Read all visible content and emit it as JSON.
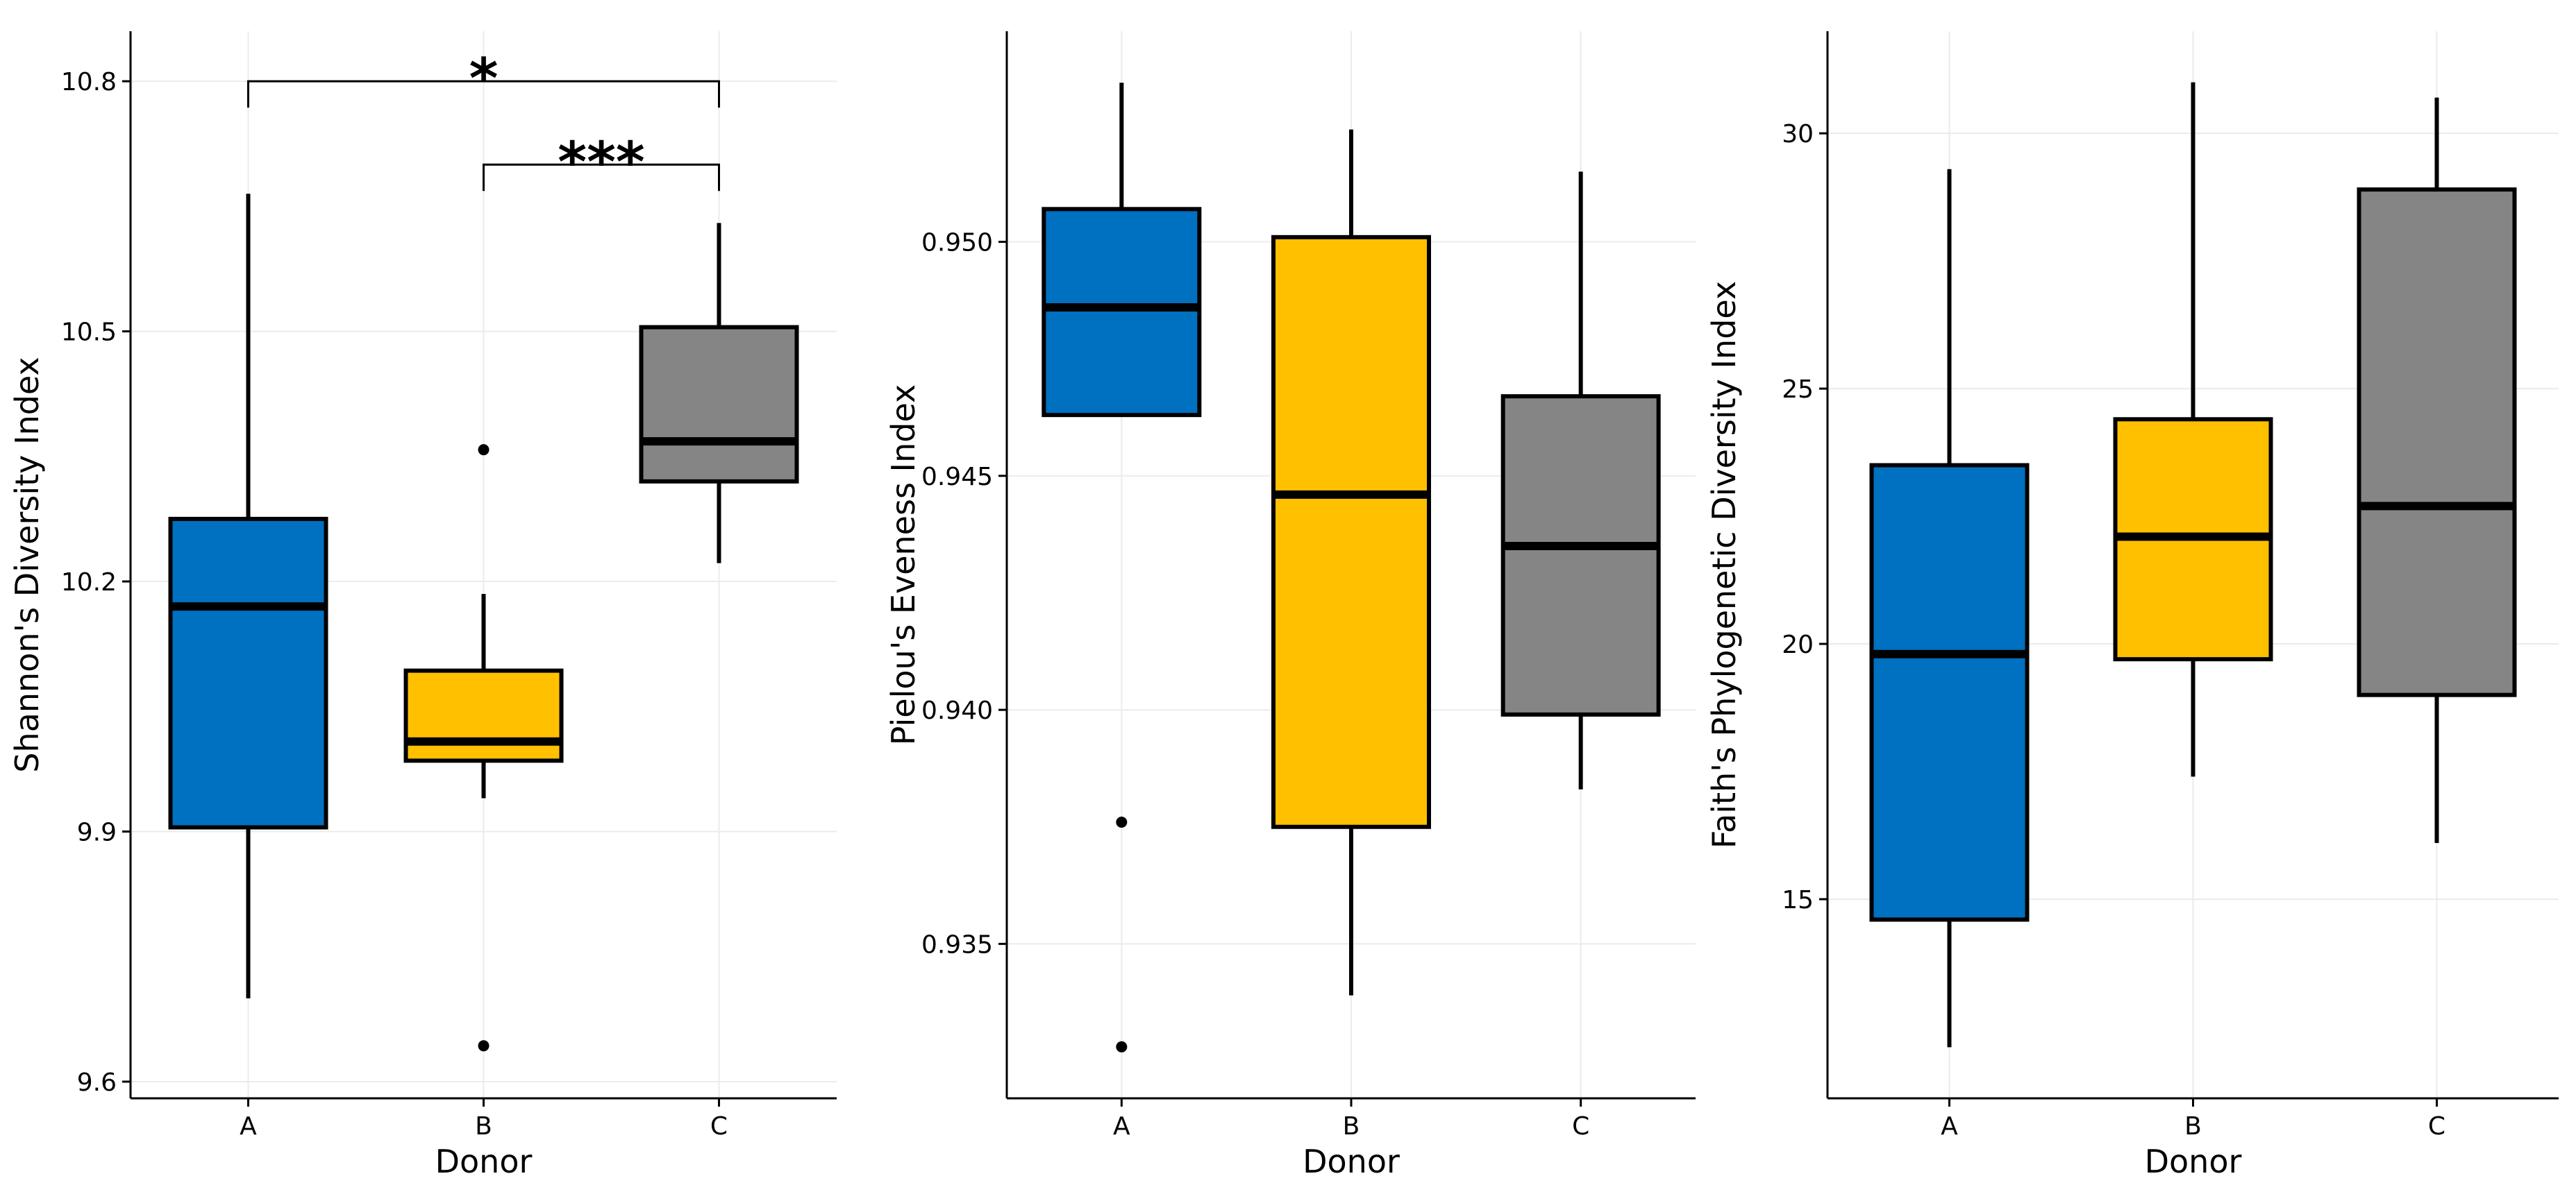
{
  "colors": {
    "A": "#0070C0",
    "B": "#FFC000",
    "C": "#858585",
    "grid": "#EBEBEB",
    "axis": "#000000"
  },
  "chart_data": [
    {
      "type": "boxplot",
      "xlabel": "Donor",
      "ylabel": "Shannon's Diversity Index",
      "categories": [
        "A",
        "B",
        "C"
      ],
      "ylim": [
        9.58,
        10.86
      ],
      "yticks": [
        9.6,
        9.9,
        10.2,
        10.5,
        10.8
      ],
      "ytick_labels": [
        "9.6",
        "9.9",
        "10.2",
        "10.5",
        "10.8"
      ],
      "boxes": [
        {
          "category": "A",
          "whisker_low": 9.7,
          "q1": 9.905,
          "median": 10.17,
          "q3": 10.275,
          "whisker_high": 10.665,
          "outliers": []
        },
        {
          "category": "B",
          "whisker_low": 9.94,
          "q1": 9.985,
          "median": 10.008,
          "q3": 10.093,
          "whisker_high": 10.185,
          "outliers": [
            10.358,
            9.643
          ]
        },
        {
          "category": "C",
          "whisker_low": 10.222,
          "q1": 10.32,
          "median": 10.368,
          "q3": 10.505,
          "whisker_high": 10.63,
          "outliers": []
        }
      ],
      "significance": [
        {
          "from": "A",
          "to": "C",
          "label": "*",
          "y": 10.8
        },
        {
          "from": "B",
          "to": "C",
          "label": "***",
          "y": 10.7
        }
      ]
    },
    {
      "type": "boxplot",
      "xlabel": "Donor",
      "ylabel": "Pielou's Eveness Index",
      "categories": [
        "A",
        "B",
        "C"
      ],
      "ylim": [
        0.9317,
        0.9545
      ],
      "yticks": [
        0.935,
        0.94,
        0.945,
        0.95
      ],
      "ytick_labels": [
        "0.935",
        "0.940",
        "0.945",
        "0.950"
      ],
      "boxes": [
        {
          "category": "A",
          "whisker_low": 0.9463,
          "q1": 0.9463,
          "median": 0.9486,
          "q3": 0.9507,
          "whisker_high": 0.9534,
          "outliers": [
            0.9376,
            0.9328
          ]
        },
        {
          "category": "B",
          "whisker_low": 0.9339,
          "q1": 0.9375,
          "median": 0.9446,
          "q3": 0.9501,
          "whisker_high": 0.9524,
          "outliers": []
        },
        {
          "category": "C",
          "whisker_low": 0.9383,
          "q1": 0.9399,
          "median": 0.9435,
          "q3": 0.9467,
          "whisker_high": 0.9515,
          "outliers": []
        }
      ],
      "significance": []
    },
    {
      "type": "boxplot",
      "xlabel": "Donor",
      "ylabel": "Faith's Phylogenetic Diversity Index",
      "categories": [
        "A",
        "B",
        "C"
      ],
      "ylim": [
        11.1,
        32.0
      ],
      "yticks": [
        15,
        20,
        25,
        30
      ],
      "ytick_labels": [
        "15",
        "20",
        "25",
        "30"
      ],
      "boxes": [
        {
          "category": "A",
          "whisker_low": 12.1,
          "q1": 14.6,
          "median": 19.8,
          "q3": 23.5,
          "whisker_high": 29.3,
          "outliers": []
        },
        {
          "category": "B",
          "whisker_low": 17.4,
          "q1": 19.7,
          "median": 22.1,
          "q3": 24.4,
          "whisker_high": 31.0,
          "outliers": []
        },
        {
          "category": "C",
          "whisker_low": 16.1,
          "q1": 19.0,
          "median": 22.7,
          "q3": 28.9,
          "whisker_high": 30.7,
          "outliers": []
        }
      ],
      "significance": []
    }
  ]
}
